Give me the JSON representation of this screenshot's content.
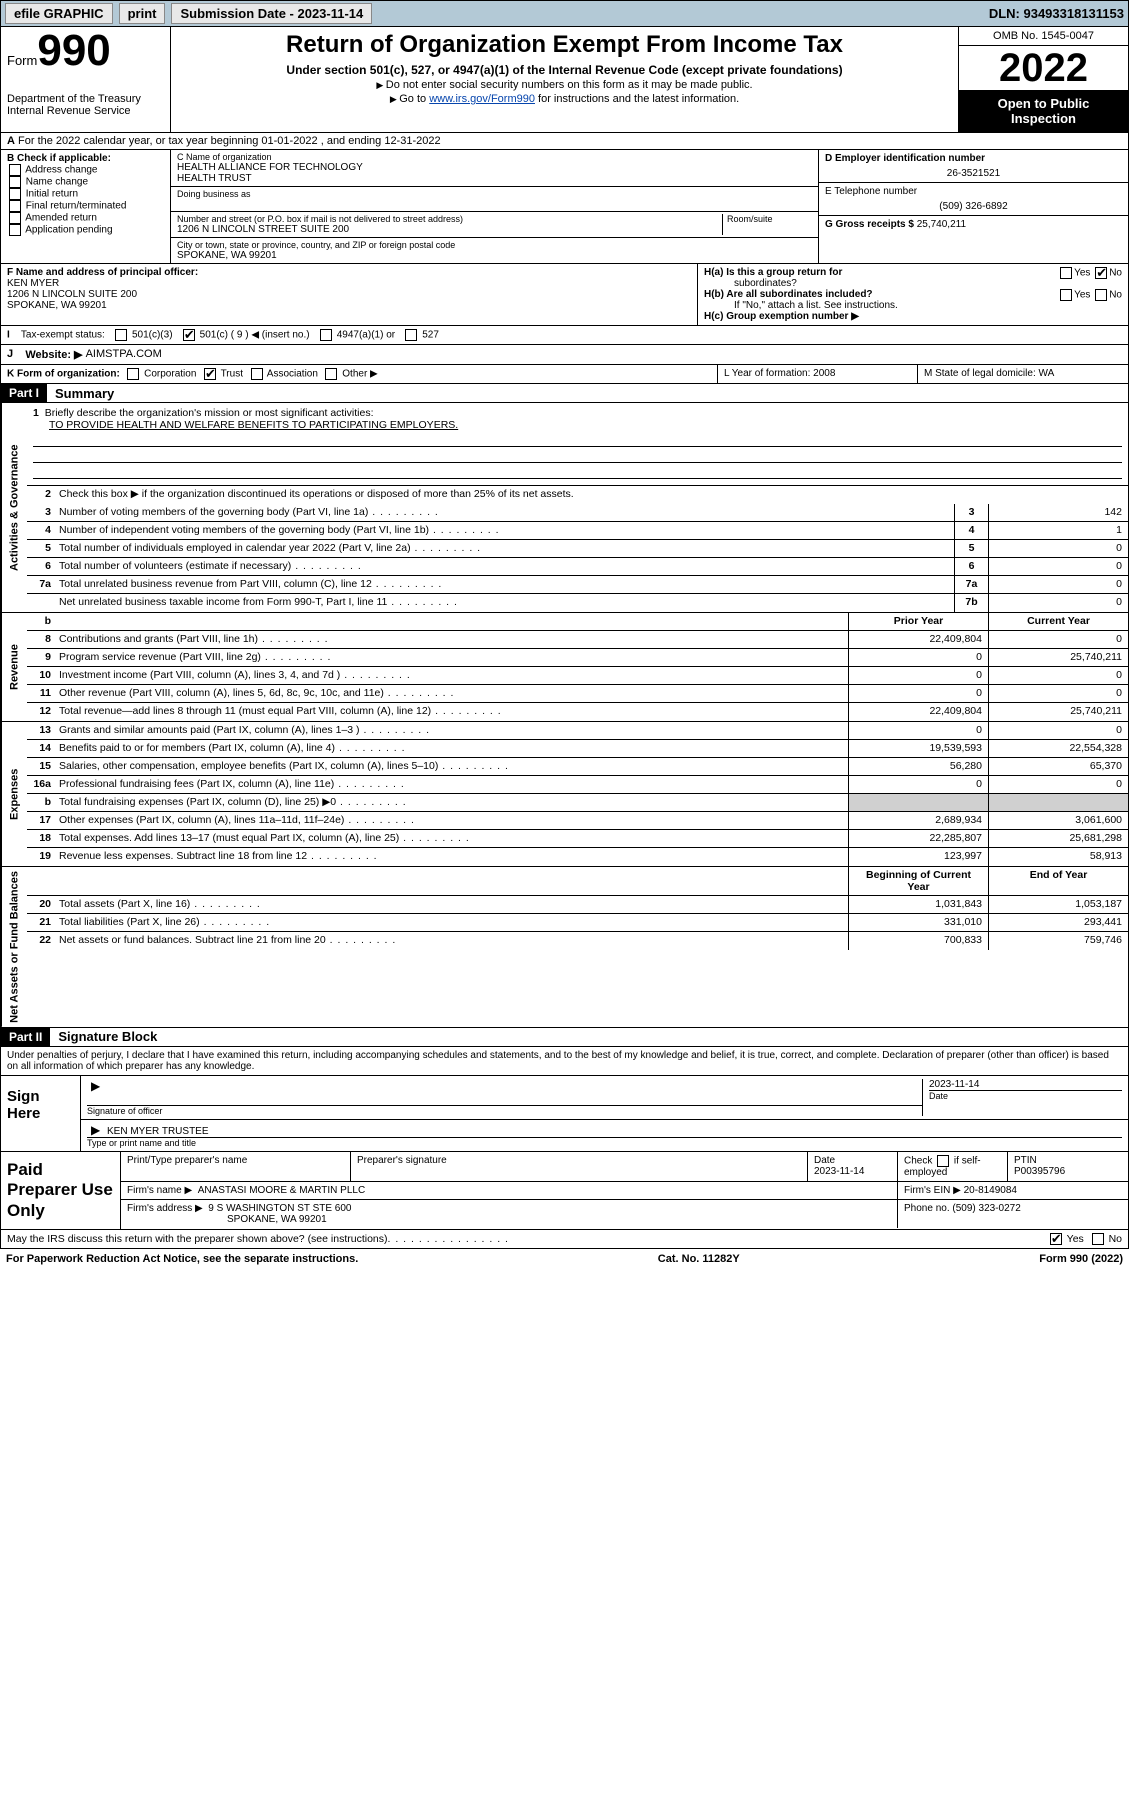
{
  "topbar": {
    "efile": "efile GRAPHIC",
    "print": "print",
    "submission_label": "Submission Date - 2023-11-14",
    "dln": "DLN: 93493318131153"
  },
  "header": {
    "form_word": "Form",
    "form_num": "990",
    "dept": "Department of the Treasury",
    "irs": "Internal Revenue Service",
    "title": "Return of Organization Exempt From Income Tax",
    "sub": "Under section 501(c), 527, or 4947(a)(1) of the Internal Revenue Code (except private foundations)",
    "note1": "Do not enter social security numbers on this form as it may be made public.",
    "note2_pre": "Go to ",
    "note2_link": "www.irs.gov/Form990",
    "note2_post": " for instructions and the latest information.",
    "omb": "OMB No. 1545-0047",
    "year": "2022",
    "open1": "Open to Public",
    "open2": "Inspection"
  },
  "row_a": "For the 2022 calendar year, or tax year beginning 01-01-2022    , and ending 12-31-2022",
  "col_b": {
    "label": "B Check if applicable:",
    "opts": [
      "Address change",
      "Name change",
      "Initial return",
      "Final return/terminated",
      "Amended return",
      "Application pending"
    ]
  },
  "col_c": {
    "name_label": "C Name of organization",
    "name1": "HEALTH ALLIANCE FOR TECHNOLOGY",
    "name2": "HEALTH TRUST",
    "dba_label": "Doing business as",
    "addr_label": "Number and street (or P.O. box if mail is not delivered to street address)",
    "room_label": "Room/suite",
    "addr": "1206 N LINCOLN STREET SUITE 200",
    "city_label": "City or town, state or province, country, and ZIP or foreign postal code",
    "city": "SPOKANE, WA  99201"
  },
  "col_de": {
    "d_label": "D Employer identification number",
    "ein": "26-3521521",
    "e_label": "E Telephone number",
    "phone": "(509) 326-6892",
    "g_label": "G Gross receipts $",
    "gross": "25,740,211"
  },
  "row_f": {
    "label": "F  Name and address of principal officer:",
    "name": "KEN MYER",
    "addr1": "1206 N LINCOLN SUITE 200",
    "addr2": "SPOKANE, WA  99201"
  },
  "row_h": {
    "ha": "H(a)  Is this a group return for",
    "ha2": "subordinates?",
    "hb": "H(b)  Are all subordinates included?",
    "hb_note": "If \"No,\" attach a list. See instructions.",
    "hc": "H(c)  Group exemption number ▶",
    "yes": "Yes",
    "no": "No"
  },
  "row_i": {
    "label": "Tax-exempt status:",
    "o1": "501(c)(3)",
    "o2": "501(c) ( 9 ) ◀ (insert no.)",
    "o3": "4947(a)(1) or",
    "o4": "527"
  },
  "row_j": {
    "label": "Website: ▶",
    "val": "AIMSTPA.COM"
  },
  "row_k": {
    "label": "K Form of organization:",
    "o1": "Corporation",
    "o2": "Trust",
    "o3": "Association",
    "o4": "Other ▶"
  },
  "row_l": "L Year of formation: 2008",
  "row_m": "M State of legal domicile: WA",
  "part1": {
    "tag": "Part I",
    "title": "Summary"
  },
  "mission": {
    "q": "Briefly describe the organization's mission or most significant activities:",
    "a": "TO PROVIDE HEALTH AND WELFARE BENEFITS TO PARTICIPATING EMPLOYERS."
  },
  "line2": "Check this box ▶        if the organization discontinued its operations or disposed of more than 25% of its net assets.",
  "lines_gov": [
    {
      "n": "3",
      "d": "Number of voting members of the governing body (Part VI, line 1a)",
      "b": "3",
      "v": "142"
    },
    {
      "n": "4",
      "d": "Number of independent voting members of the governing body (Part VI, line 1b)",
      "b": "4",
      "v": "1"
    },
    {
      "n": "5",
      "d": "Total number of individuals employed in calendar year 2022 (Part V, line 2a)",
      "b": "5",
      "v": "0"
    },
    {
      "n": "6",
      "d": "Total number of volunteers (estimate if necessary)",
      "b": "6",
      "v": "0"
    },
    {
      "n": "7a",
      "d": "Total unrelated business revenue from Part VIII, column (C), line 12",
      "b": "7a",
      "v": "0"
    },
    {
      "n": "",
      "d": "Net unrelated business taxable income from Form 990-T, Part I, line 11",
      "b": "7b",
      "v": "0"
    }
  ],
  "twocol_hdr": {
    "b": "b",
    "py": "Prior Year",
    "cy": "Current Year"
  },
  "lines_rev": [
    {
      "n": "8",
      "d": "Contributions and grants (Part VIII, line 1h)",
      "py": "22,409,804",
      "cy": "0"
    },
    {
      "n": "9",
      "d": "Program service revenue (Part VIII, line 2g)",
      "py": "0",
      "cy": "25,740,211"
    },
    {
      "n": "10",
      "d": "Investment income (Part VIII, column (A), lines 3, 4, and 7d )",
      "py": "0",
      "cy": "0"
    },
    {
      "n": "11",
      "d": "Other revenue (Part VIII, column (A), lines 5, 6d, 8c, 9c, 10c, and 11e)",
      "py": "0",
      "cy": "0"
    },
    {
      "n": "12",
      "d": "Total revenue—add lines 8 through 11 (must equal Part VIII, column (A), line 12)",
      "py": "22,409,804",
      "cy": "25,740,211"
    }
  ],
  "lines_exp": [
    {
      "n": "13",
      "d": "Grants and similar amounts paid (Part IX, column (A), lines 1–3 )",
      "py": "0",
      "cy": "0"
    },
    {
      "n": "14",
      "d": "Benefits paid to or for members (Part IX, column (A), line 4)",
      "py": "19,539,593",
      "cy": "22,554,328"
    },
    {
      "n": "15",
      "d": "Salaries, other compensation, employee benefits (Part IX, column (A), lines 5–10)",
      "py": "56,280",
      "cy": "65,370"
    },
    {
      "n": "16a",
      "d": "Professional fundraising fees (Part IX, column (A), line 11e)",
      "py": "0",
      "cy": "0"
    },
    {
      "n": "b",
      "d": "Total fundraising expenses (Part IX, column (D), line 25) ▶0",
      "py": "",
      "cy": "",
      "shaded": true
    },
    {
      "n": "17",
      "d": "Other expenses (Part IX, column (A), lines 11a–11d, 11f–24e)",
      "py": "2,689,934",
      "cy": "3,061,600"
    },
    {
      "n": "18",
      "d": "Total expenses. Add lines 13–17 (must equal Part IX, column (A), line 25)",
      "py": "22,285,807",
      "cy": "25,681,298"
    },
    {
      "n": "19",
      "d": "Revenue less expenses. Subtract line 18 from line 12",
      "py": "123,997",
      "cy": "58,913"
    }
  ],
  "twocol_hdr2": {
    "py": "Beginning of Current Year",
    "cy": "End of Year"
  },
  "lines_na": [
    {
      "n": "20",
      "d": "Total assets (Part X, line 16)",
      "py": "1,031,843",
      "cy": "1,053,187"
    },
    {
      "n": "21",
      "d": "Total liabilities (Part X, line 26)",
      "py": "331,010",
      "cy": "293,441"
    },
    {
      "n": "22",
      "d": "Net assets or fund balances. Subtract line 21 from line 20",
      "py": "700,833",
      "cy": "759,746"
    }
  ],
  "side_labels": {
    "gov": "Activities & Governance",
    "rev": "Revenue",
    "exp": "Expenses",
    "na": "Net Assets or Fund Balances"
  },
  "part2": {
    "tag": "Part II",
    "title": "Signature Block"
  },
  "sig_decl": "Under penalties of perjury, I declare that I have examined this return, including accompanying schedules and statements, and to the best of my knowledge and belief, it is true, correct, and complete. Declaration of preparer (other than officer) is based on all information of which preparer has any knowledge.",
  "sign_here": "Sign Here",
  "sig_off_label": "Signature of officer",
  "sig_date_label": "Date",
  "sig_date": "2023-11-14",
  "sig_name": "KEN MYER TRUSTEE",
  "sig_name_label": "Type or print name and title",
  "paid": {
    "title": "Paid Preparer Use Only",
    "h1": "Print/Type preparer's name",
    "h2": "Preparer's signature",
    "h3": "Date",
    "date": "2023-11-14",
    "h4_pre": "Check",
    "h4_post": "if self-employed",
    "h5": "PTIN",
    "ptin": "P00395796",
    "firm_name_label": "Firm's name    ▶",
    "firm_name": "ANASTASI MOORE & MARTIN PLLC",
    "firm_ein_label": "Firm's EIN ▶",
    "firm_ein": "20-8149084",
    "firm_addr_label": "Firm's address ▶",
    "firm_addr1": "9 S WASHINGTON ST STE 600",
    "firm_addr2": "SPOKANE, WA  99201",
    "phone_label": "Phone no.",
    "phone": "(509) 323-0272"
  },
  "footer_q": "May the IRS discuss this return with the preparer shown above? (see instructions)",
  "footer_paper": "For Paperwork Reduction Act Notice, see the separate instructions.",
  "footer_cat": "Cat. No. 11282Y",
  "footer_form": "Form 990 (2022)"
}
